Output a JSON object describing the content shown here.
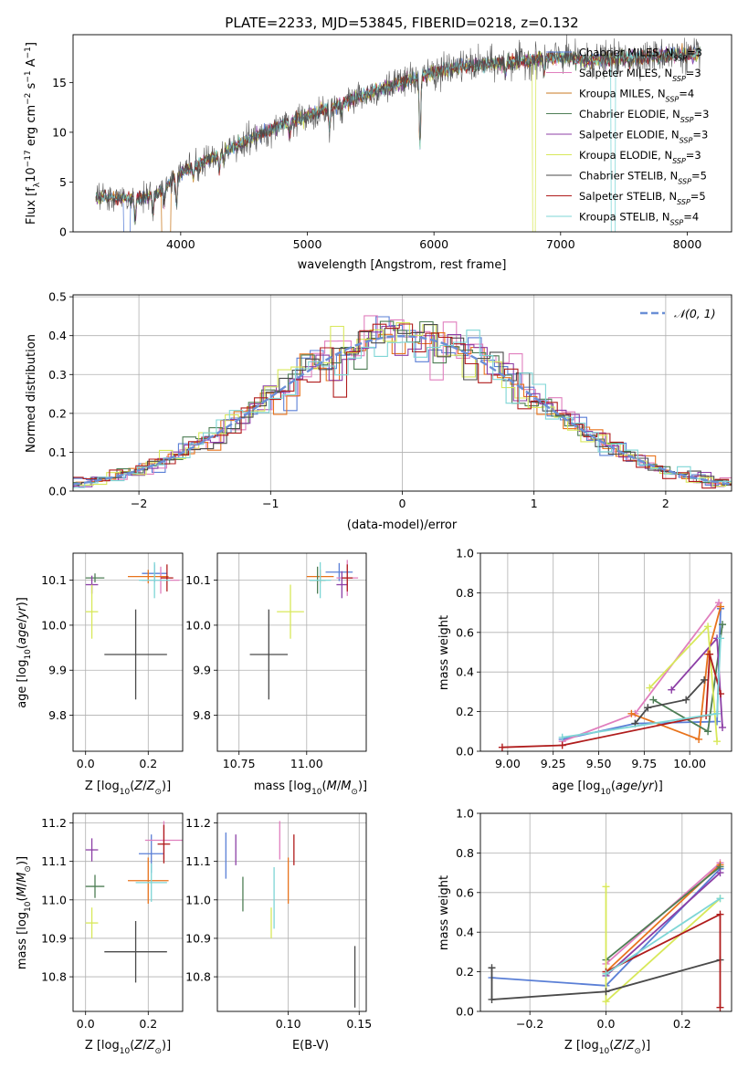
{
  "chart_data": [
    {
      "type": "line",
      "title": "PLATE=2233, MJD=53845, FIBERID=0218, z=0.132",
      "xlabel": "wavelength [Angstrom, rest frame]",
      "ylabel": "Flux [f_λ10^-17 erg cm^-2 s^-1 A^-1]",
      "xlim": [
        3150,
        8350
      ],
      "ylim": [
        0,
        19.8
      ],
      "xticks": [
        4000,
        5000,
        6000,
        7000,
        8000
      ],
      "yticks": [
        0,
        5,
        10,
        15
      ],
      "grid": false,
      "legend": "top-right",
      "continuum": [
        [
          3350,
          3.5
        ],
        [
          3600,
          3.4
        ],
        [
          3800,
          3.6
        ],
        [
          4000,
          6.0
        ],
        [
          4200,
          7.2
        ],
        [
          4500,
          9.0
        ],
        [
          4800,
          10.8
        ],
        [
          5000,
          11.7
        ],
        [
          5200,
          12.6
        ],
        [
          5500,
          14.0
        ],
        [
          5800,
          15.2
        ],
        [
          6000,
          16.0
        ],
        [
          6200,
          16.6
        ],
        [
          6500,
          16.9
        ],
        [
          6800,
          17.3
        ],
        [
          7000,
          17.6
        ],
        [
          7200,
          17.2
        ],
        [
          7500,
          17.4
        ],
        [
          7800,
          17.7
        ],
        [
          8100,
          17.8
        ]
      ],
      "features": [
        [
          3640,
          -2.5
        ],
        [
          3780,
          -1.8
        ],
        [
          3870,
          -1.5
        ],
        [
          3968,
          -3.0
        ],
        [
          4100,
          -1.2
        ],
        [
          4305,
          -1.8
        ],
        [
          4340,
          -1.0
        ],
        [
          4861,
          -1.4
        ],
        [
          5175,
          -2.2
        ],
        [
          5270,
          -1.0
        ],
        [
          5890,
          -7.0
        ],
        [
          6563,
          -1.0
        ],
        [
          6870,
          -1.5
        ]
      ],
      "drops": [
        [
          3550,
          3600,
          0
        ],
        [
          3850,
          3920,
          2
        ],
        [
          6780,
          6800,
          5
        ],
        [
          7400,
          7430,
          8
        ]
      ],
      "series": [
        {
          "name": "Chabrier MILES, N_SSP=3",
          "color": "#5a7fd6"
        },
        {
          "name": "Salpeter MILES, N_SSP=3",
          "color": "#e07fbe"
        },
        {
          "name": "Kroupa MILES, N_SSP=4",
          "color": "#c87820"
        },
        {
          "name": "Chabrier ELODIE, N_SSP=3",
          "color": "#4e7e55"
        },
        {
          "name": "Salpeter ELODIE, N_SSP=3",
          "color": "#8c3fa6"
        },
        {
          "name": "Kroupa ELODIE, N_SSP=3",
          "color": "#d8e85a"
        },
        {
          "name": "Chabrier STELIB, N_SSP=5",
          "color": "#4a4a4a"
        },
        {
          "name": "Salpeter STELIB, N_SSP=5",
          "color": "#b01c1c"
        },
        {
          "name": "Kroupa STELIB, N_SSP=4",
          "color": "#7ed6d6"
        }
      ]
    },
    {
      "type": "line",
      "xlabel": "(data-model)/error",
      "ylabel": "Normed distribution",
      "xlim": [
        -2.5,
        2.5
      ],
      "ylim": [
        0,
        0.505
      ],
      "xticks": [
        -2,
        -1,
        0,
        1,
        2
      ],
      "yticks": [
        0.0,
        0.1,
        0.2,
        0.3,
        0.4,
        0.5
      ],
      "grid": true,
      "legend": "top-right",
      "reference": {
        "name": "𝒩(0, 1)",
        "color": "#6a8fd6"
      },
      "bin_width": 0.1,
      "colors": [
        "#5a7fd6",
        "#e07fbe",
        "#e8731c",
        "#4e7e55",
        "#8c3fa6",
        "#d8e85a",
        "#4a4a4a",
        "#b01c1c",
        "#7ed6d6"
      ]
    },
    {
      "type": "scatter",
      "xlabel": "Z [log10(Z/Z⊙)]",
      "ylabel": "age  [log10(age/yr)]",
      "xlim": [
        -0.04,
        0.31
      ],
      "ylim": [
        9.72,
        10.16
      ],
      "xticks": [
        0.0,
        0.2
      ],
      "yticks": [
        9.8,
        9.9,
        10.0,
        10.1
      ],
      "grid": true,
      "points": [
        {
          "x": 0.22,
          "y": 10.115,
          "xerr": 0.04,
          "yerr": 0.02,
          "color": "#5a7fd6"
        },
        {
          "x": 0.24,
          "y": 10.1,
          "xerr": 0.06,
          "yerr": 0.03,
          "color": "#e07fbe"
        },
        {
          "x": 0.2,
          "y": 10.108,
          "xerr": 0.065,
          "yerr": 0.015,
          "color": "#e8731c"
        },
        {
          "x": 0.03,
          "y": 10.105,
          "xerr": 0.03,
          "yerr": 0.01,
          "color": "#4e7e55"
        },
        {
          "x": 0.02,
          "y": 10.09,
          "xerr": 0.02,
          "yerr": 0.02,
          "color": "#8c3fa6"
        },
        {
          "x": 0.02,
          "y": 10.03,
          "xerr": 0.02,
          "yerr": 0.06,
          "color": "#d8e85a"
        },
        {
          "x": 0.16,
          "y": 9.935,
          "xerr": 0.1,
          "yerr": 0.1,
          "color": "#4a4a4a"
        },
        {
          "x": 0.26,
          "y": 10.105,
          "xerr": 0.02,
          "yerr": 0.03,
          "color": "#b01c1c"
        },
        {
          "x": 0.22,
          "y": 10.1,
          "xerr": 0.05,
          "yerr": 0.04,
          "color": "#7ed6d6"
        }
      ]
    },
    {
      "type": "scatter",
      "xlabel": "mass [log10(M/M⊙)]",
      "xlim": [
        10.67,
        11.22
      ],
      "ylim": [
        9.72,
        10.16
      ],
      "xticks": [
        10.75,
        11.0
      ],
      "yticks": [
        9.8,
        9.9,
        10.0,
        10.1
      ],
      "grid": true,
      "points": [
        {
          "x": 11.12,
          "y": 10.118,
          "xerr": 0.05,
          "yerr": 0.02,
          "color": "#5a7fd6"
        },
        {
          "x": 11.15,
          "y": 10.105,
          "xerr": 0.04,
          "yerr": 0.04,
          "color": "#e07fbe"
        },
        {
          "x": 11.05,
          "y": 10.108,
          "xerr": 0.05,
          "yerr": 0.015,
          "color": "#e8731c"
        },
        {
          "x": 11.04,
          "y": 10.1,
          "xerr": 0.03,
          "yerr": 0.03,
          "color": "#4e7e55"
        },
        {
          "x": 11.13,
          "y": 10.09,
          "xerr": 0.02,
          "yerr": 0.03,
          "color": "#8c3fa6"
        },
        {
          "x": 10.94,
          "y": 10.03,
          "xerr": 0.05,
          "yerr": 0.06,
          "color": "#d8e85a"
        },
        {
          "x": 10.86,
          "y": 9.935,
          "xerr": 0.07,
          "yerr": 0.1,
          "color": "#4a4a4a"
        },
        {
          "x": 11.15,
          "y": 10.105,
          "xerr": 0.02,
          "yerr": 0.03,
          "color": "#b01c1c"
        },
        {
          "x": 11.05,
          "y": 10.1,
          "xerr": 0.04,
          "yerr": 0.04,
          "color": "#7ed6d6"
        }
      ]
    },
    {
      "type": "line",
      "xlabel": "age  [log10(age/yr)]",
      "ylabel": "mass weight",
      "xlim": [
        8.85,
        10.23
      ],
      "ylim": [
        0,
        1.0
      ],
      "xticks": [
        9.0,
        9.25,
        9.5,
        9.75,
        10.0
      ],
      "yticks": [
        0.0,
        0.2,
        0.4,
        0.6,
        0.8,
        1.0
      ],
      "grid": true,
      "series": [
        {
          "color": "#5a7fd6",
          "points": [
            [
              9.3,
              0.06
            ],
            [
              9.7,
              0.14
            ],
            [
              10.15,
              0.15
            ],
            [
              10.17,
              0.72
            ]
          ]
        },
        {
          "color": "#e07fbe",
          "points": [
            [
              9.3,
              0.05
            ],
            [
              9.7,
              0.19
            ],
            [
              10.16,
              0.75
            ]
          ]
        },
        {
          "color": "#e8731c",
          "points": [
            [
              9.68,
              0.19
            ],
            [
              10.05,
              0.06
            ],
            [
              10.1,
              0.49
            ],
            [
              10.17,
              0.73
            ]
          ]
        },
        {
          "color": "#4e7e55",
          "points": [
            [
              9.8,
              0.26
            ],
            [
              10.1,
              0.1
            ],
            [
              10.18,
              0.64
            ]
          ]
        },
        {
          "color": "#8c3fa6",
          "points": [
            [
              9.9,
              0.31
            ],
            [
              10.15,
              0.57
            ],
            [
              10.18,
              0.12
            ]
          ]
        },
        {
          "color": "#d8e85a",
          "points": [
            [
              9.78,
              0.32
            ],
            [
              10.1,
              0.63
            ],
            [
              10.15,
              0.05
            ]
          ]
        },
        {
          "color": "#4a4a4a",
          "points": [
            [
              9.7,
              0.14
            ],
            [
              9.77,
              0.22
            ],
            [
              9.98,
              0.26
            ],
            [
              10.08,
              0.36
            ]
          ]
        },
        {
          "color": "#b01c1c",
          "points": [
            [
              8.97,
              0.02
            ],
            [
              9.3,
              0.03
            ],
            [
              10.09,
              0.18
            ],
            [
              10.11,
              0.49
            ],
            [
              10.17,
              0.29
            ]
          ]
        },
        {
          "color": "#7ed6d6",
          "points": [
            [
              9.3,
              0.07
            ],
            [
              10.15,
              0.19
            ],
            [
              10.17,
              0.57
            ]
          ]
        }
      ]
    },
    {
      "type": "scatter",
      "xlabel": "Z [log10(Z/Z⊙)]",
      "ylabel": "mass [log10(M/M⊙)]",
      "xlim": [
        -0.04,
        0.31
      ],
      "ylim": [
        10.71,
        11.225
      ],
      "xticks": [
        0.0,
        0.2
      ],
      "yticks": [
        10.8,
        10.9,
        11.0,
        11.1,
        11.2
      ],
      "grid": true,
      "points": [
        {
          "x": 0.21,
          "y": 11.12,
          "xerr": 0.04,
          "yerr": 0.05,
          "color": "#5a7fd6"
        },
        {
          "x": 0.25,
          "y": 11.155,
          "xerr": 0.06,
          "yerr": 0.05,
          "color": "#e07fbe"
        },
        {
          "x": 0.2,
          "y": 11.05,
          "xerr": 0.065,
          "yerr": 0.06,
          "color": "#e8731c"
        },
        {
          "x": 0.03,
          "y": 11.035,
          "xerr": 0.03,
          "yerr": 0.03,
          "color": "#4e7e55"
        },
        {
          "x": 0.02,
          "y": 11.13,
          "xerr": 0.02,
          "yerr": 0.03,
          "color": "#8c3fa6"
        },
        {
          "x": 0.02,
          "y": 10.94,
          "xerr": 0.02,
          "yerr": 0.04,
          "color": "#d8e85a"
        },
        {
          "x": 0.16,
          "y": 10.865,
          "xerr": 0.1,
          "yerr": 0.08,
          "color": "#4a4a4a"
        },
        {
          "x": 0.25,
          "y": 11.145,
          "xerr": 0.02,
          "yerr": 0.05,
          "color": "#b01c1c"
        },
        {
          "x": 0.21,
          "y": 11.045,
          "xerr": 0.05,
          "yerr": 0.05,
          "color": "#7ed6d6"
        }
      ]
    },
    {
      "type": "scatter",
      "xlabel": "E(B-V)",
      "xlim": [
        0.05,
        0.155
      ],
      "ylim": [
        10.71,
        11.225
      ],
      "xticks": [
        0.1,
        0.15
      ],
      "yticks": [
        10.8,
        10.9,
        11.0,
        11.1,
        11.2
      ],
      "grid": true,
      "points": [
        {
          "x": 0.056,
          "y": 11.115,
          "yerr": 0.06,
          "color": "#5a7fd6"
        },
        {
          "x": 0.094,
          "y": 11.155,
          "yerr": 0.05,
          "color": "#e07fbe"
        },
        {
          "x": 0.1,
          "y": 11.05,
          "yerr": 0.06,
          "color": "#e8731c"
        },
        {
          "x": 0.068,
          "y": 11.015,
          "yerr": 0.045,
          "color": "#4e7e55"
        },
        {
          "x": 0.063,
          "y": 11.13,
          "yerr": 0.04,
          "color": "#8c3fa6"
        },
        {
          "x": 0.088,
          "y": 10.94,
          "yerr": 0.04,
          "color": "#d8e85a"
        },
        {
          "x": 0.147,
          "y": 10.8,
          "yerr": 0.08,
          "color": "#4a4a4a"
        },
        {
          "x": 0.104,
          "y": 11.13,
          "yerr": 0.04,
          "color": "#b01c1c"
        },
        {
          "x": 0.09,
          "y": 11.005,
          "yerr": 0.08,
          "color": "#7ed6d6"
        }
      ]
    },
    {
      "type": "line",
      "xlabel": "Z [log10(Z/Z⊙)]",
      "ylabel": "mass weight",
      "xlim": [
        -0.33,
        0.33
      ],
      "ylim": [
        0,
        1.0
      ],
      "xticks": [
        -0.2,
        0.0,
        0.2
      ],
      "yticks": [
        0.0,
        0.2,
        0.4,
        0.6,
        0.8,
        1.0
      ],
      "grid": true,
      "series": [
        {
          "color": "#5a7fd6",
          "points": [
            [
              -0.3,
              0.17
            ],
            [
              0.0,
              0.13
            ],
            [
              0.3,
              0.72
            ]
          ]
        },
        {
          "color": "#e07fbe",
          "points": [
            [
              0.0,
              0.24
            ],
            [
              0.3,
              0.75
            ]
          ]
        },
        {
          "color": "#e8731c",
          "points": [
            [
              0.0,
              0.2
            ],
            [
              0.3,
              0.74
            ]
          ]
        },
        {
          "color": "#4e7e55",
          "points": [
            [
              0.0,
              0.26
            ],
            [
              0.3,
              0.73
            ]
          ]
        },
        {
          "color": "#8c3fa6",
          "points": [
            [
              0.0,
              0.18
            ],
            [
              0.3,
              0.7
            ]
          ]
        },
        {
          "color": "#d8e85a",
          "points": [
            [
              0.0,
              0.63
            ],
            [
              0.0,
              0.05
            ],
            [
              0.3,
              0.57
            ]
          ]
        },
        {
          "color": "#4a4a4a",
          "points": [
            [
              -0.3,
              0.22
            ],
            [
              -0.3,
              0.06
            ],
            [
              0.0,
              0.1
            ],
            [
              0.3,
              0.26
            ]
          ]
        },
        {
          "color": "#b01c1c",
          "points": [
            [
              0.0,
              0.2
            ],
            [
              0.3,
              0.49
            ],
            [
              0.3,
              0.02
            ]
          ]
        },
        {
          "color": "#7ed6d6",
          "points": [
            [
              0.0,
              0.19
            ],
            [
              0.3,
              0.57
            ]
          ]
        }
      ]
    }
  ]
}
